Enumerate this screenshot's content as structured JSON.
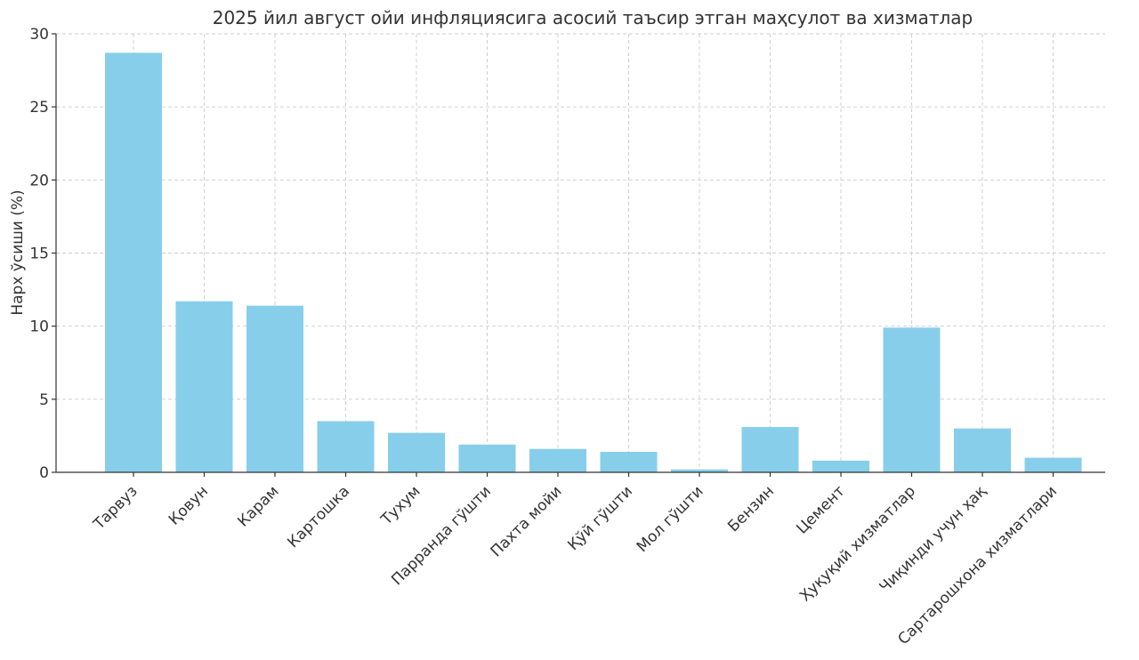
{
  "chart_data": {
    "type": "bar",
    "title": "2025 йил август ойи инфляциясига асосий таъсир этган маҳсулот ва хизматлар",
    "xlabel": "",
    "ylabel": "Нарх ўсиши (%)",
    "ylim": [
      0,
      30
    ],
    "yticks": [
      0,
      5,
      10,
      15,
      20,
      25,
      30
    ],
    "grid": true,
    "bar_color": "#87CEEB",
    "categories": [
      "Тарвуз",
      "Қовун",
      "Карам",
      "Картошка",
      "Тухум",
      "Парранда гўшти",
      "Пахта мойи",
      "Қўй гўшти",
      "Мол гўшти",
      "Бензин",
      "Цемент",
      "Ҳуқуқий хизматлар",
      "Чиқинди учун ҳақ",
      "Сартарошхона хизматлари"
    ],
    "values": [
      28.7,
      11.7,
      11.4,
      3.5,
      2.7,
      1.9,
      1.6,
      1.4,
      0.2,
      3.1,
      0.8,
      9.9,
      3.0,
      1.0
    ]
  }
}
